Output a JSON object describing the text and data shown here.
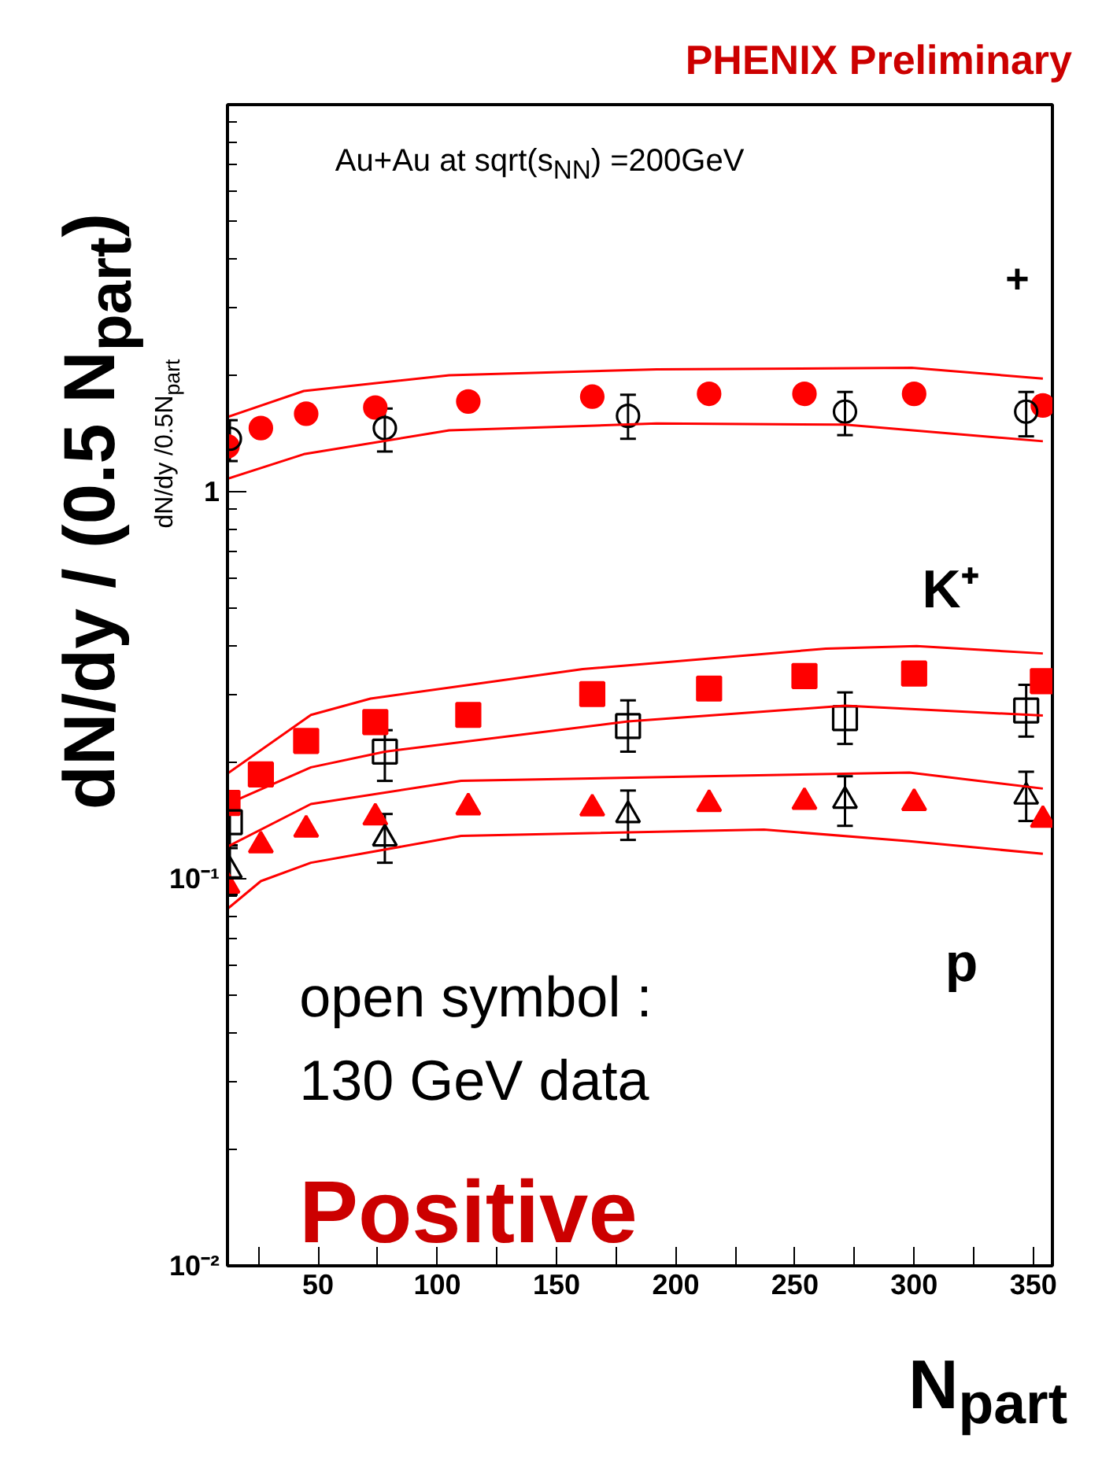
{
  "chart_data": {
    "type": "scatter",
    "title": "PHENIX Preliminary",
    "xlabel": "N$_{part}$",
    "ylabel": "dN/dy / (0.5 N$_{part}$)",
    "annotations": [
      "Au+Au at sqrt(s$_{NN}$) =200GeV",
      "+",
      "K⁺",
      "p",
      "open symbol :",
      "130 GeV data",
      "Positive",
      "dN/dy /0.5N$_{part}$"
    ],
    "x": [
      12,
      26,
      45,
      74,
      113,
      165,
      214,
      254,
      300,
      354
    ],
    "xlim": [
      12,
      358
    ],
    "ylim": [
      0.01,
      10
    ],
    "log": true,
    "grid": false,
    "xticks": [
      {
        "value": 25,
        "label": null
      },
      50,
      {
        "value": 75,
        "label": null
      },
      100,
      {
        "value": 125,
        "label": null
      },
      150,
      {
        "value": 175,
        "label": null
      },
      200,
      {
        "value": 225,
        "label": null
      },
      250,
      {
        "value": 275,
        "label": null
      },
      300,
      {
        "value": 325,
        "label": null
      },
      350
    ],
    "yticks": [
      {
        "value": 0.01,
        "label": "10⁻²"
      },
      {
        "value": 0.1,
        "label": "10⁻¹"
      },
      1,
      {
        "value": 10,
        "label": null
      }
    ],
    "series": [
      {
        "color": "#ff0000",
        "marker": "circle",
        "values": [
          1.31,
          1.46,
          1.59,
          1.65,
          1.71,
          1.76,
          1.79,
          1.79,
          1.79,
          1.67
        ]
      },
      {
        "color": "#000000",
        "marker": "circle_open",
        "x": [
          13,
          78,
          180,
          271,
          347
        ],
        "values": [
          1.37,
          1.46,
          1.57,
          1.61,
          1.61
        ],
        "errors": [
          [
            1.2,
            1.53
          ],
          [
            1.27,
            1.64
          ],
          [
            1.37,
            1.78
          ],
          [
            1.4,
            1.81
          ],
          [
            1.39,
            1.81
          ]
        ]
      },
      {
        "type": "line",
        "color": "#ff0000",
        "marker": "none",
        "x": [
          12,
          44,
          105,
          192,
          299,
          354
        ],
        "values": [
          1.56,
          1.82,
          2.0,
          2.07,
          2.09,
          1.96
        ]
      },
      {
        "type": "line",
        "color": "#ff0000",
        "marker": "none",
        "x": [
          12,
          44,
          105,
          192,
          271,
          354
        ],
        "values": [
          1.08,
          1.25,
          1.44,
          1.5,
          1.49,
          1.35
        ]
      },
      {
        "color": "#ff0000",
        "marker": "square",
        "values": [
          0.157,
          0.186,
          0.227,
          0.254,
          0.265,
          0.3,
          0.31,
          0.334,
          0.339,
          0.324
        ]
      },
      {
        "color": "#000000",
        "marker": "square_open",
        "x": [
          13,
          78,
          180,
          271,
          347
        ],
        "values": [
          0.14,
          0.213,
          0.248,
          0.26,
          0.272
        ],
        "errors": [
          [
            0.12,
            0.163
          ],
          [
            0.179,
            0.242
          ],
          [
            0.213,
            0.289
          ],
          [
            0.223,
            0.303
          ],
          [
            0.233,
            0.317
          ]
        ]
      },
      {
        "type": "line",
        "color": "#ff0000",
        "marker": "none",
        "x": [
          12,
          47,
          72,
          161,
          263,
          301,
          354
        ],
        "values": [
          0.187,
          0.265,
          0.292,
          0.348,
          0.393,
          0.399,
          0.382
        ]
      },
      {
        "type": "line",
        "color": "#ff0000",
        "marker": "none",
        "x": [
          12,
          47,
          78,
          180,
          271,
          354
        ],
        "values": [
          0.156,
          0.194,
          0.213,
          0.255,
          0.28,
          0.264
        ]
      },
      {
        "color": "#ff0000",
        "marker": "triangle",
        "values": [
          0.096,
          0.122,
          0.134,
          0.144,
          0.153,
          0.152,
          0.156,
          0.158,
          0.157,
          0.142
        ]
      },
      {
        "color": "#000000",
        "marker": "triangle_open",
        "x": [
          13,
          78,
          180,
          271,
          347
        ],
        "values": [
          0.105,
          0.127,
          0.146,
          0.159,
          0.163
        ],
        "errors": [
          [
            0.091,
            0.122
          ],
          [
            0.11,
            0.147
          ],
          [
            0.126,
            0.169
          ],
          [
            0.137,
            0.184
          ],
          [
            0.141,
            0.189
          ]
        ]
      },
      {
        "type": "line",
        "color": "#ff0000",
        "marker": "none",
        "x": [
          12,
          47,
          110,
          212,
          298,
          354
        ],
        "values": [
          0.121,
          0.156,
          0.179,
          0.184,
          0.188,
          0.171
        ]
      },
      {
        "type": "line",
        "color": "#ff0000",
        "marker": "none",
        "x": [
          12,
          26,
          47,
          110,
          237,
          298,
          354
        ],
        "values": [
          0.0836,
          0.0986,
          0.11,
          0.129,
          0.134,
          0.125,
          0.116
        ]
      }
    ]
  }
}
